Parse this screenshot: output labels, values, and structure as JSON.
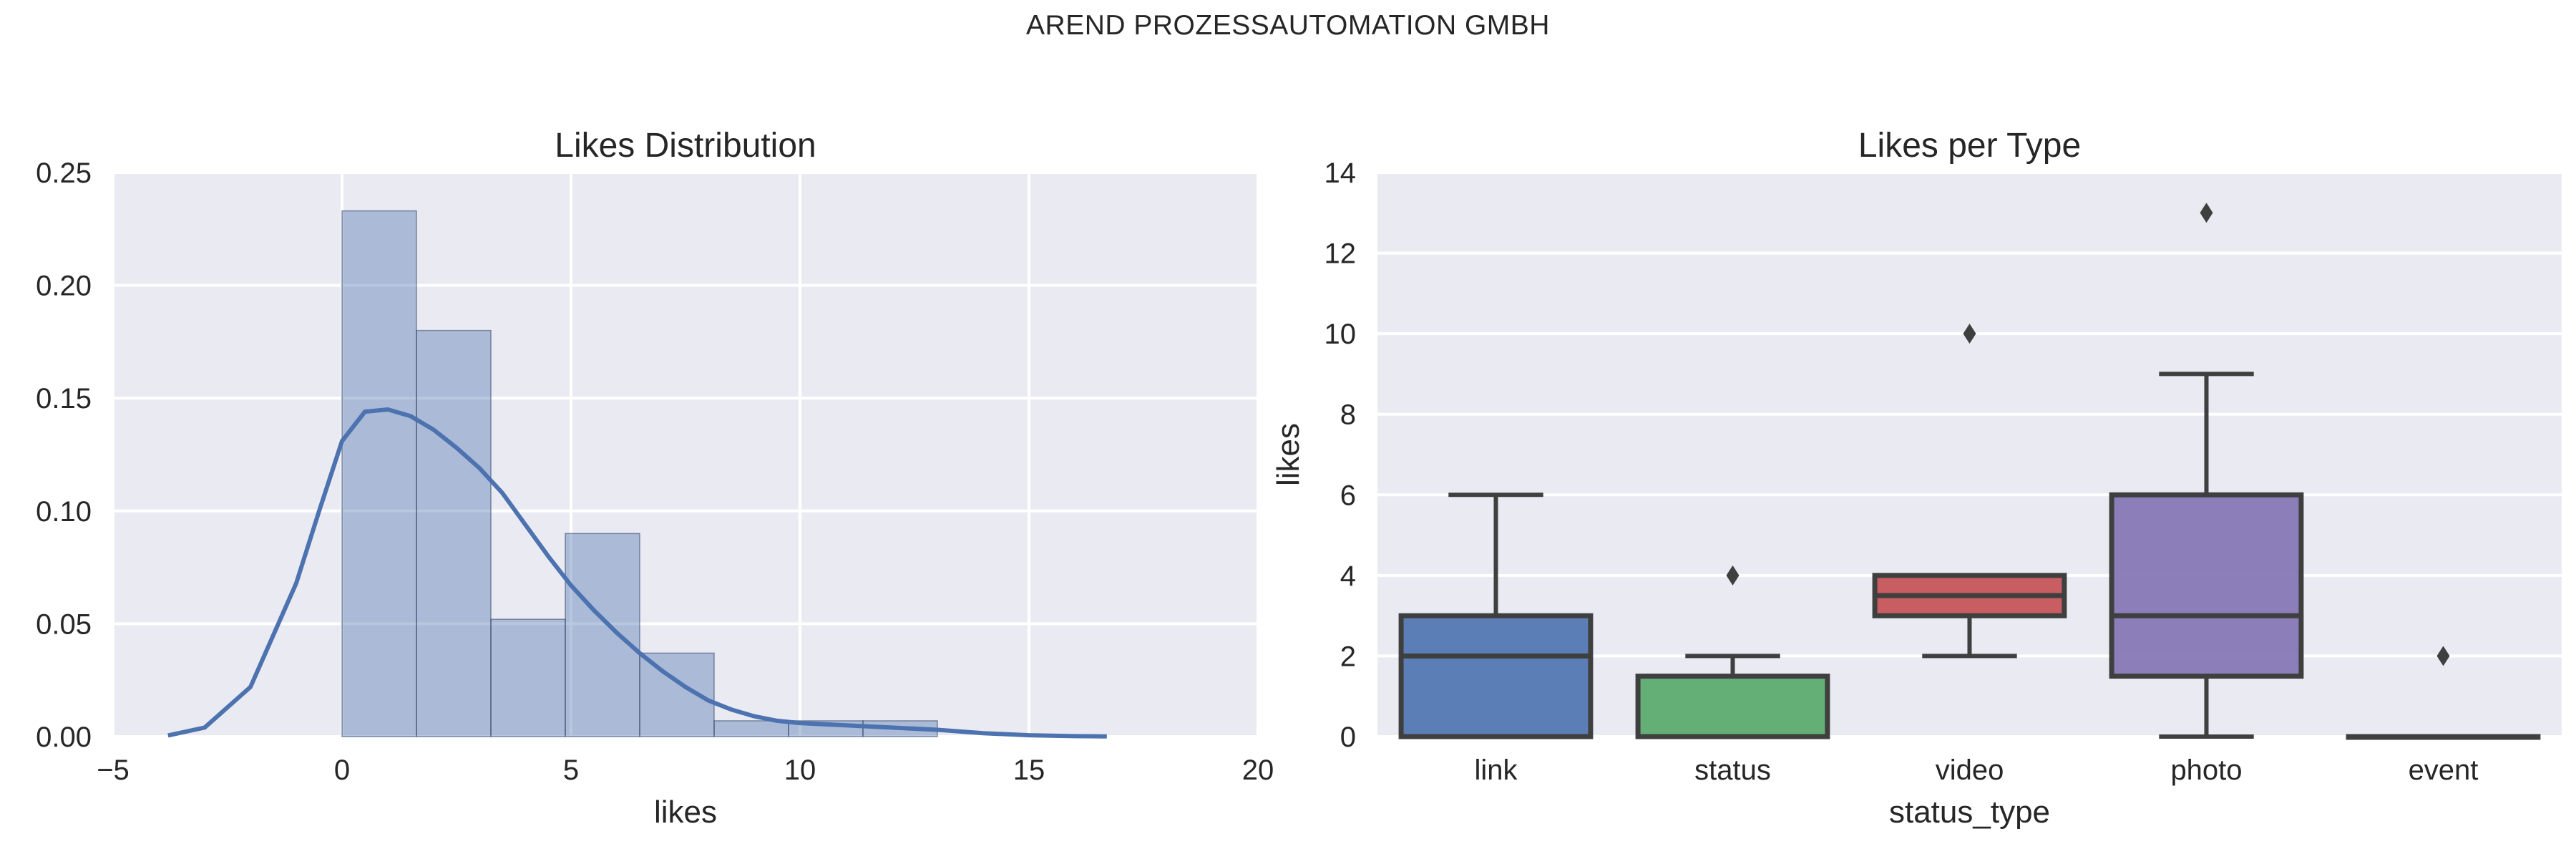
{
  "page": {
    "title": "AREND PROZESSAUTOMATION GMBH"
  },
  "chart_data": [
    {
      "type": "histogram",
      "title": "Likes Distribution",
      "xlabel": "likes",
      "ylabel": "",
      "xlim": [
        -5,
        20
      ],
      "ylim": [
        0,
        0.25
      ],
      "xticks": [
        -5,
        0,
        5,
        10,
        15,
        20
      ],
      "yticks": [
        0.0,
        0.05,
        0.1,
        0.15,
        0.2,
        0.25
      ],
      "ytick_labels": [
        "0.00",
        "0.05",
        "0.10",
        "0.15",
        "0.20",
        "0.25"
      ],
      "grid": true,
      "bar_color": "#4c72b0",
      "bins": [
        {
          "x0": 0.0,
          "x1": 1.625,
          "density": 0.233
        },
        {
          "x0": 1.625,
          "x1": 3.25,
          "density": 0.18
        },
        {
          "x0": 3.25,
          "x1": 4.875,
          "density": 0.052
        },
        {
          "x0": 4.875,
          "x1": 6.5,
          "density": 0.09
        },
        {
          "x0": 6.5,
          "x1": 8.125,
          "density": 0.037
        },
        {
          "x0": 8.125,
          "x1": 9.75,
          "density": 0.007
        },
        {
          "x0": 9.75,
          "x1": 11.375,
          "density": 0.007
        },
        {
          "x0": 11.375,
          "x1": 13.0,
          "density": 0.007
        }
      ],
      "kde": {
        "color": "#4c72b0",
        "x": [
          -3.8,
          -3,
          -2,
          -1,
          -0.5,
          0,
          0.5,
          1,
          1.5,
          2,
          2.5,
          3,
          3.5,
          4,
          4.5,
          5,
          5.5,
          6,
          6.5,
          7,
          7.5,
          8,
          8.5,
          9,
          9.5,
          10,
          11,
          12,
          13,
          14,
          15,
          16,
          16.7
        ],
        "y": [
          0.0005,
          0.004,
          0.022,
          0.068,
          0.1,
          0.131,
          0.144,
          0.145,
          0.142,
          0.136,
          0.128,
          0.119,
          0.108,
          0.094,
          0.08,
          0.067,
          0.056,
          0.046,
          0.037,
          0.029,
          0.022,
          0.016,
          0.012,
          0.009,
          0.007,
          0.006,
          0.005,
          0.004,
          0.003,
          0.0015,
          0.0006,
          0.0002,
          0.0001
        ]
      }
    },
    {
      "type": "box",
      "title": "Likes per Type",
      "xlabel": "status_type",
      "ylabel": "likes",
      "ylim": [
        0,
        14
      ],
      "yticks": [
        0,
        2,
        4,
        6,
        8,
        10,
        12,
        14
      ],
      "grid": true,
      "categories": [
        "link",
        "status",
        "video",
        "photo",
        "event"
      ],
      "boxes": [
        {
          "name": "link",
          "color": "#4c72b0",
          "q1": 0,
          "median": 2,
          "q3": 3,
          "whisker_low": 0,
          "whisker_high": 6,
          "outliers": []
        },
        {
          "name": "status",
          "color": "#55a868",
          "q1": 0,
          "median": 0,
          "q3": 1.5,
          "whisker_low": 0,
          "whisker_high": 2,
          "outliers": [
            4
          ]
        },
        {
          "name": "video",
          "color": "#c44e52",
          "q1": 3,
          "median": 3.5,
          "q3": 4,
          "whisker_low": 2,
          "whisker_high": 4,
          "outliers": [
            10
          ]
        },
        {
          "name": "photo",
          "color": "#8172b2",
          "q1": 1.5,
          "median": 3,
          "q3": 6,
          "whisker_low": 0,
          "whisker_high": 9,
          "outliers": [
            13
          ]
        },
        {
          "name": "event",
          "color": "#ccb974",
          "q1": 0,
          "median": 0,
          "q3": 0,
          "whisker_low": 0,
          "whisker_high": 0,
          "outliers": [
            2
          ]
        }
      ]
    }
  ]
}
